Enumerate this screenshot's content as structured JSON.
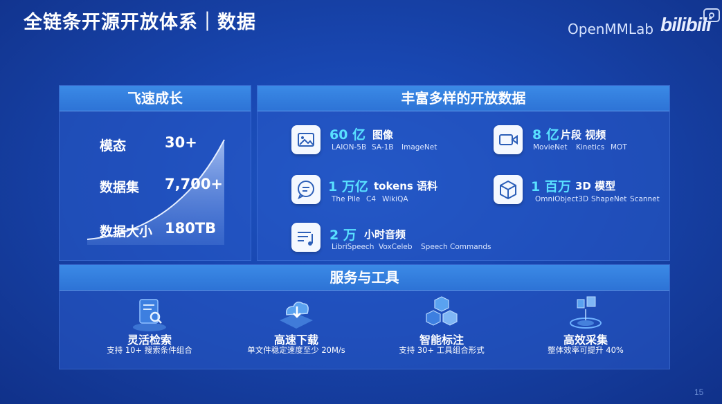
{
  "header": {
    "title": "全链条开源开放体系｜数据",
    "brand": "OpenMMLab",
    "watermark": "bilibili"
  },
  "growth": {
    "heading": "飞速成长",
    "stats": [
      {
        "label": "模态",
        "value": "30+"
      },
      {
        "label": "数据集",
        "value": "7,700+"
      },
      {
        "label": "数据大小",
        "value": "180TB"
      }
    ]
  },
  "open_data": {
    "heading": "丰富多样的开放数据",
    "items": [
      {
        "icon": "image-icon",
        "count": "60 亿",
        "kind": "图像",
        "sources": [
          "LAION-5B",
          "SA-1B",
          "ImageNet"
        ]
      },
      {
        "icon": "video-icon",
        "count": "8 亿",
        "kind": "片段 视频",
        "sources": [
          "MovieNet",
          "Kinetics",
          "MOT"
        ]
      },
      {
        "icon": "chat-icon",
        "count": "1 万亿",
        "kind": "tokens 语料",
        "sources": [
          "The Pile",
          "C4",
          "WikiQA"
        ]
      },
      {
        "icon": "cube-icon",
        "count": "1 百万",
        "kind": "3D 模型",
        "sources": [
          "OmniObject3D",
          "ShapeNet",
          "Scannet"
        ]
      },
      {
        "icon": "audio-icon",
        "count": "2 万",
        "kind": "小时音频",
        "sources": [
          "LibriSpeech",
          "VoxCeleb",
          "Speech Commands"
        ]
      }
    ]
  },
  "services": {
    "heading": "服务与工具",
    "items": [
      {
        "icon": "search-doc-icon",
        "title": "灵活检索",
        "desc": "支持 10+ 搜索条件组合"
      },
      {
        "icon": "cloud-download-icon",
        "title": "高速下载",
        "desc": "单文件稳定速度至少 20M/s"
      },
      {
        "icon": "annotation-cubes-icon",
        "title": "智能标注",
        "desc": "支持 30+ 工具组合形式"
      },
      {
        "icon": "collection-icon",
        "title": "高效采集",
        "desc": "整体效率可提升 40%"
      }
    ]
  },
  "page": {
    "number": "15"
  },
  "colors": {
    "accent_cyan": "#59e0ff",
    "panel_head": "#3b8ae6",
    "background": "#1846b0"
  }
}
